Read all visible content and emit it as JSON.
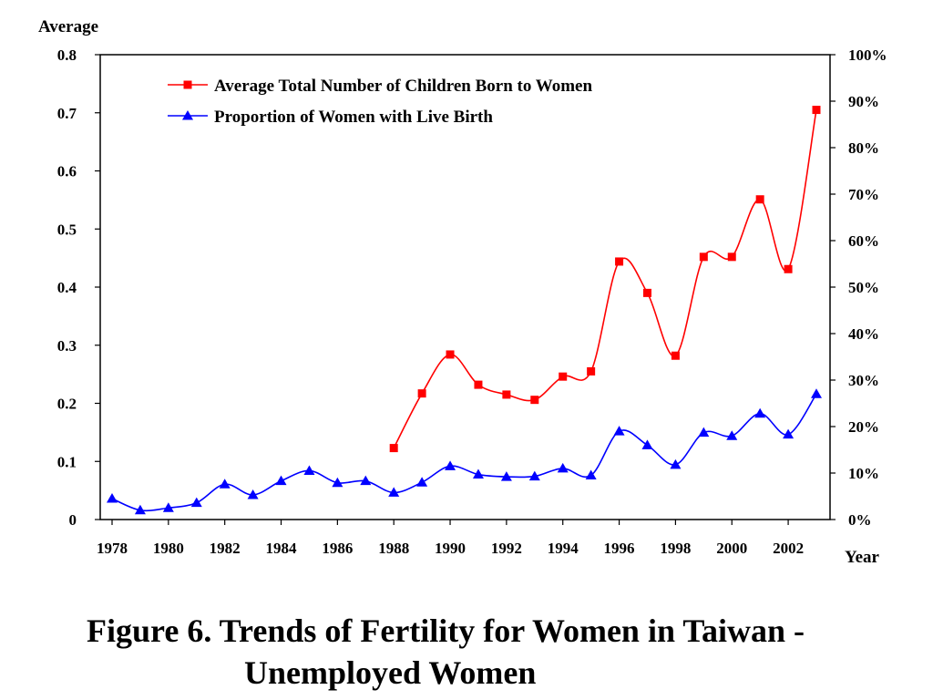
{
  "caption": {
    "line1": "Figure 6. Trends of Fertility for Women in Taiwan -",
    "line2": "Unemployed Women"
  },
  "chart_data": {
    "type": "line",
    "title": "",
    "xlabel": "Year",
    "ylabel": "Average",
    "y2label": "",
    "x_ticks": [
      "1978",
      "1980",
      "1982",
      "1984",
      "1986",
      "1988",
      "1990",
      "1992",
      "1994",
      "1996",
      "1998",
      "2000",
      "2002"
    ],
    "ylim": [
      0,
      0.8
    ],
    "y_ticks": [
      "0",
      "0.1",
      "0.2",
      "0.3",
      "0.4",
      "0.5",
      "0.6",
      "0.7",
      "0.8"
    ],
    "y2lim": [
      0,
      100
    ],
    "y2_ticks": [
      "0%",
      "10%",
      "20%",
      "30%",
      "40%",
      "50%",
      "60%",
      "70%",
      "80%",
      "90%",
      "100%"
    ],
    "legend_position": "top-left",
    "grid": false,
    "series": [
      {
        "name": "Average Total Number of Children Born to Women",
        "color": "#ff0000",
        "marker": "square",
        "axis": "left",
        "x": [
          1988,
          1989,
          1990,
          1991,
          1992,
          1993,
          1994,
          1995,
          1996,
          1997,
          1998,
          1999,
          2000,
          2001,
          2002,
          2003
        ],
        "values": [
          0.123,
          0.217,
          0.284,
          0.232,
          0.215,
          0.206,
          0.246,
          0.255,
          0.444,
          0.39,
          0.282,
          0.452,
          0.452,
          0.551,
          0.431,
          0.705
        ]
      },
      {
        "name": "Proportion of Women with Live Birth",
        "color": "#0000ff",
        "marker": "triangle",
        "axis": "right",
        "x": [
          1978,
          1979,
          1980,
          1981,
          1982,
          1983,
          1984,
          1985,
          1986,
          1987,
          1988,
          1989,
          1990,
          1991,
          1992,
          1993,
          1994,
          1995,
          1996,
          1997,
          1998,
          1999,
          2000,
          2001,
          2002,
          2003
        ],
        "values": [
          4.5,
          2,
          2.5,
          3.6,
          7.6,
          5.3,
          8.3,
          10.5,
          7.9,
          8.3,
          5.8,
          8,
          11.5,
          9.7,
          9.2,
          9.3,
          11,
          9.5,
          19,
          16,
          11.8,
          18.7,
          18,
          22.8,
          18.3,
          27
        ]
      }
    ]
  }
}
